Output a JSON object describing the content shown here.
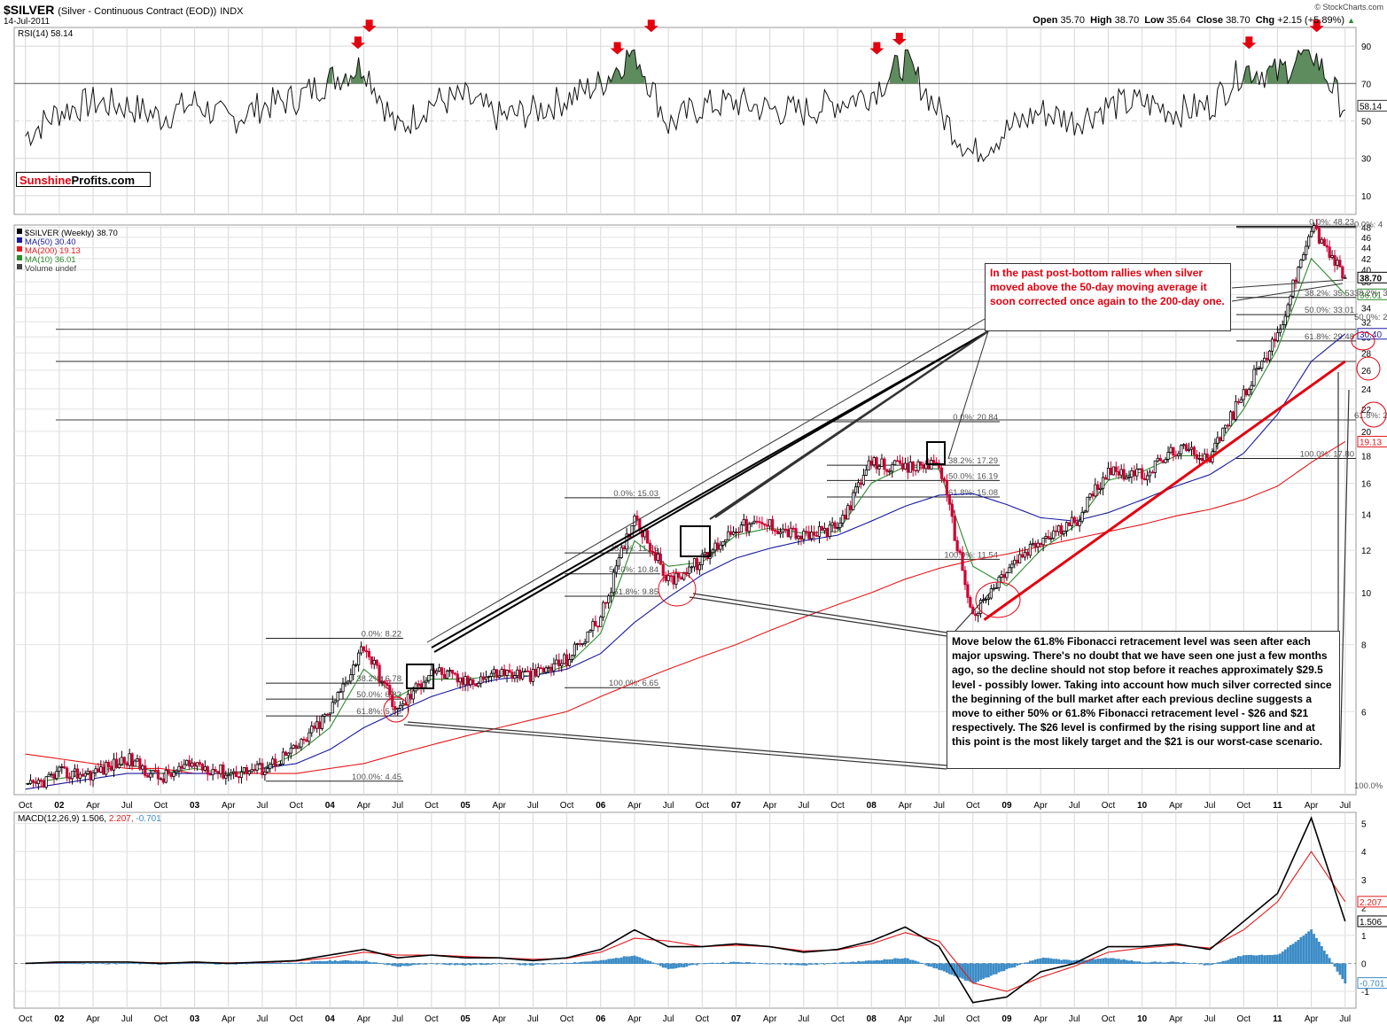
{
  "header": {
    "symbol": "$SILVER",
    "name": "(Silver - Continuous Contract (EOD))",
    "exchange": "INDX",
    "date": "14-Jul-2011",
    "credit": "© StockCharts.com",
    "open_label": "Open",
    "open": "35.70",
    "high_label": "High",
    "high": "38.70",
    "low_label": "Low",
    "low": "35.64",
    "close_label": "Close",
    "close": "38.70",
    "chg_label": "Chg",
    "chg": "+2.15 (+5.89%)",
    "chg_arrow": "▲"
  },
  "logo": {
    "part1": "Sunshine",
    "part2": "Profits.com"
  },
  "colors": {
    "price_up": "#000000",
    "price_down": "#cc0033",
    "ma50": "#1a1aa0",
    "ma200": "#e31a1c",
    "ma10": "#2d8a2d",
    "rsi_fill": "#5e8c5e",
    "macd_signal": "#e31a1c",
    "histogram": "#3b8bc6",
    "annotation": "#e3000f",
    "support_line": "#e3000f"
  },
  "annotations": {
    "note1": "In the past post-bottom rallies when silver moved above the 50-day moving average it soon corrected once again to the 200-day one.",
    "note2": "Move below the 61.8% Fibonacci retracement level was seen after each major upswing. There's no doubt that we have seen one just a few months ago, so the decline should not stop before it reaches approximately $29.5 level - possibly lower. Taking into account how much silver corrected since the beginning of the bull market after each previous decline suggests a move to either 50% or 61.8% Fibonacci retracement level - $26 and $21 respectively. The $26 level is confirmed by the rising support line and at this point is the most likely target and the $21 is our worst-case scenario."
  },
  "chart_data": [
    {
      "type": "line",
      "panel": "RSI",
      "legend": "RSI(14) 58.14",
      "ytick_labels": [
        "90",
        "70",
        "50",
        "30",
        "10"
      ],
      "yticks": [
        90,
        70,
        50,
        30,
        10
      ],
      "ylim": [
        0,
        100
      ],
      "current_value": "58.14",
      "x": [
        "2001-10",
        "2002-01",
        "2002-04",
        "2002-07",
        "2002-10",
        "2003-01",
        "2003-04",
        "2003-07",
        "2003-10",
        "2004-01",
        "2004-04",
        "2004-07",
        "2004-10",
        "2005-01",
        "2005-04",
        "2005-07",
        "2005-10",
        "2006-01",
        "2006-04",
        "2006-07",
        "2006-10",
        "2007-01",
        "2007-04",
        "2007-07",
        "2007-10",
        "2008-01",
        "2008-04",
        "2008-07",
        "2008-10",
        "2009-01",
        "2009-04",
        "2009-07",
        "2009-10",
        "2010-01",
        "2010-04",
        "2010-07",
        "2010-10",
        "2011-01",
        "2011-04",
        "2011-07"
      ],
      "values": [
        42,
        55,
        60,
        58,
        52,
        60,
        50,
        58,
        62,
        72,
        80,
        45,
        60,
        62,
        52,
        55,
        62,
        70,
        88,
        48,
        58,
        60,
        56,
        55,
        60,
        65,
        82,
        55,
        32,
        45,
        55,
        50,
        58,
        60,
        55,
        58,
        78,
        75,
        88,
        56
      ],
      "overbought_peaks": [
        {
          "x": "2004-03",
          "value": 80
        },
        {
          "x": "2004-04",
          "value": 89
        },
        {
          "x": "2006-02",
          "value": 77
        },
        {
          "x": "2006-05",
          "value": 89
        },
        {
          "x": "2008-01",
          "value": 77
        },
        {
          "x": "2008-03",
          "value": 82
        },
        {
          "x": "2010-10",
          "value": 80
        },
        {
          "x": "2011-04",
          "value": 89
        }
      ]
    },
    {
      "type": "line",
      "panel": "Price (log scale)",
      "legend": [
        "$SILVER (Weekly) 38.70",
        "MA(50) 30.40",
        "MA(200) 19.13",
        "MA(10) 36.01",
        "Volume undef"
      ],
      "scale": "log",
      "ytick_labels": [
        "48",
        "46",
        "44",
        "42",
        "40",
        "38",
        "36",
        "34",
        "32",
        "30",
        "28",
        "26",
        "24",
        "22",
        "20",
        "18",
        "16",
        "14",
        "12",
        "10",
        "8",
        "6"
      ],
      "yticks": [
        48,
        46,
        44,
        42,
        40,
        38,
        36,
        34,
        32,
        30,
        28,
        26,
        24,
        22,
        20,
        18,
        16,
        14,
        12,
        10,
        8,
        6
      ],
      "ylim": [
        4.2,
        48.5
      ],
      "right_labels": [
        "38.70",
        "36.01",
        "30.40",
        "19.13"
      ],
      "x": [
        "2001-10",
        "2002-01",
        "2002-04",
        "2002-07",
        "2002-10",
        "2003-01",
        "2003-04",
        "2003-07",
        "2003-10",
        "2004-01",
        "2004-04",
        "2004-07",
        "2004-10",
        "2005-01",
        "2005-04",
        "2005-07",
        "2005-10",
        "2006-01",
        "2006-04",
        "2006-07",
        "2006-10",
        "2007-01",
        "2007-04",
        "2007-07",
        "2007-10",
        "2008-01",
        "2008-04",
        "2008-07",
        "2008-10",
        "2009-01",
        "2009-04",
        "2009-07",
        "2009-10",
        "2010-01",
        "2010-04",
        "2010-07",
        "2010-10",
        "2011-01",
        "2011-04",
        "2011-07"
      ],
      "series": [
        {
          "name": "$SILVER (Weekly) 38.70",
          "values": [
            4.3,
            4.6,
            4.6,
            4.9,
            4.5,
            4.8,
            4.6,
            4.7,
            5.1,
            6.0,
            8.0,
            6.0,
            7.2,
            6.8,
            7.1,
            7.0,
            7.5,
            9.0,
            14.0,
            10.5,
            11.5,
            13.3,
            13.4,
            12.7,
            13.2,
            17.5,
            17.0,
            17.5,
            9.0,
            11.0,
            12.5,
            13.5,
            17.0,
            16.5,
            18.5,
            18.0,
            23.5,
            30.0,
            48.0,
            38.7
          ]
        },
        {
          "name": "MA(50) 30.40",
          "values": [
            4.3,
            4.4,
            4.5,
            4.6,
            4.6,
            4.6,
            4.6,
            4.7,
            4.8,
            5.1,
            5.6,
            6.0,
            6.4,
            6.7,
            6.9,
            7.0,
            7.2,
            7.7,
            8.8,
            9.8,
            10.8,
            11.6,
            12.1,
            12.5,
            12.8,
            13.6,
            14.5,
            15.2,
            15.3,
            14.6,
            13.8,
            13.6,
            14.1,
            14.9,
            15.8,
            16.6,
            18.2,
            21.5,
            27.0,
            30.4
          ]
        },
        {
          "name": "MA(200) 19.13",
          "values": [
            5.0,
            4.9,
            4.8,
            4.7,
            4.7,
            4.6,
            4.6,
            4.6,
            4.6,
            4.7,
            4.8,
            5.0,
            5.2,
            5.4,
            5.6,
            5.8,
            6.0,
            6.4,
            6.8,
            7.2,
            7.6,
            8.0,
            8.5,
            9.0,
            9.5,
            10.0,
            10.6,
            11.1,
            11.5,
            11.8,
            12.2,
            12.6,
            13.0,
            13.4,
            13.9,
            14.3,
            14.9,
            15.8,
            17.5,
            19.13
          ]
        },
        {
          "name": "MA(10) 36.01",
          "values": [
            4.4,
            4.5,
            4.6,
            4.8,
            4.6,
            4.7,
            4.6,
            4.7,
            5.0,
            5.6,
            7.2,
            6.4,
            6.9,
            6.9,
            7.0,
            7.0,
            7.3,
            8.4,
            12.5,
            11.2,
            11.4,
            12.8,
            13.2,
            12.9,
            13.0,
            16.0,
            17.2,
            17.0,
            11.2,
            10.3,
            12.0,
            13.3,
            16.2,
            16.8,
            18.0,
            18.0,
            22.0,
            28.5,
            42.0,
            36.01
          ]
        }
      ],
      "fibonacci_sets": [
        {
          "levels": [
            "0.0%: 8.22",
            "38.2%: 6.78",
            "50.0%: 6.33",
            "61.8%: 5.89",
            "100.0%: 4.45"
          ],
          "values": [
            8.22,
            6.78,
            6.33,
            5.89,
            4.45
          ]
        },
        {
          "levels": [
            "0.0%: 15.03",
            "38.2%: 11.86",
            "50.0%: 10.84",
            "61.8%: 9.85",
            "100.0%: 6.65"
          ],
          "values": [
            15.03,
            11.86,
            10.84,
            9.85,
            6.65
          ]
        },
        {
          "levels": [
            "0.0%: 20.84",
            "38.2%: 17.29",
            "50.0%: 16.19",
            "61.8%: 15.08",
            "100.0%: 11.54"
          ],
          "values": [
            20.84,
            17.29,
            16.19,
            15.08,
            11.54
          ]
        },
        {
          "levels": [
            "0.0%: 48.23",
            "38.2%: 35.53",
            "50.0%: 33.01",
            "61.8%: 29.48",
            "100.0%: 17.80"
          ],
          "values": [
            48.23,
            35.53,
            33.01,
            29.48,
            17.8
          ]
        }
      ],
      "horizontal_levels": [
        31.0,
        27.0,
        21.0
      ],
      "right_fib_labels": [
        "0.0%: 4",
        "38.2%: 3",
        "50.0%: 2",
        "61.8%: 2",
        "100.0%"
      ],
      "support_line": {
        "from": {
          "x": "2008-11",
          "y": 8.9
        },
        "to": {
          "x": "2011-07",
          "y": 27.0
        }
      }
    },
    {
      "type": "line",
      "panel": "MACD",
      "legend": [
        "MACD(12,26,9) 1.506,",
        "2.207,",
        "-0.701"
      ],
      "ytick_labels": [
        "5",
        "4",
        "3",
        "2",
        "1",
        "0",
        "-1"
      ],
      "yticks": [
        5,
        4,
        3,
        2,
        1,
        0,
        -1
      ],
      "ylim": [
        -1.6,
        5.4
      ],
      "right_labels": [
        "2.207",
        "1.506",
        "-0.701"
      ],
      "x": [
        "2001-10",
        "2002-01",
        "2002-04",
        "2002-07",
        "2002-10",
        "2003-01",
        "2003-04",
        "2003-07",
        "2003-10",
        "2004-01",
        "2004-04",
        "2004-07",
        "2004-10",
        "2005-01",
        "2005-04",
        "2005-07",
        "2005-10",
        "2006-01",
        "2006-04",
        "2006-07",
        "2006-10",
        "2007-01",
        "2007-04",
        "2007-07",
        "2007-10",
        "2008-01",
        "2008-04",
        "2008-07",
        "2008-10",
        "2009-01",
        "2009-04",
        "2009-07",
        "2009-10",
        "2010-01",
        "2010-04",
        "2010-07",
        "2010-10",
        "2011-01",
        "2011-04",
        "2011-07"
      ],
      "series": [
        {
          "name": "MACD",
          "values": [
            0.0,
            0.05,
            0.05,
            0.05,
            0.0,
            0.05,
            0.0,
            0.05,
            0.1,
            0.3,
            0.5,
            0.2,
            0.3,
            0.2,
            0.2,
            0.1,
            0.2,
            0.5,
            1.2,
            0.6,
            0.6,
            0.7,
            0.6,
            0.4,
            0.5,
            0.8,
            1.3,
            0.6,
            -1.4,
            -1.2,
            -0.3,
            0.0,
            0.6,
            0.6,
            0.7,
            0.5,
            1.5,
            2.5,
            5.2,
            1.506
          ]
        },
        {
          "name": "Signal",
          "values": [
            0.0,
            0.03,
            0.05,
            0.05,
            0.02,
            0.03,
            0.02,
            0.03,
            0.08,
            0.2,
            0.4,
            0.3,
            0.3,
            0.25,
            0.2,
            0.15,
            0.18,
            0.4,
            0.9,
            0.8,
            0.6,
            0.65,
            0.6,
            0.45,
            0.48,
            0.7,
            1.1,
            0.8,
            -0.7,
            -1.0,
            -0.5,
            -0.1,
            0.4,
            0.55,
            0.65,
            0.55,
            1.2,
            2.2,
            4.0,
            2.207
          ]
        },
        {
          "name": "Histogram",
          "values": [
            0.0,
            0.02,
            0.0,
            0.0,
            -0.02,
            0.02,
            -0.02,
            0.02,
            0.02,
            0.1,
            0.1,
            -0.1,
            0.0,
            -0.05,
            0.0,
            -0.05,
            0.02,
            0.1,
            0.3,
            -0.2,
            0.0,
            0.05,
            0.0,
            -0.05,
            0.02,
            0.1,
            0.2,
            -0.2,
            -0.7,
            -0.2,
            0.2,
            0.1,
            0.2,
            0.05,
            0.05,
            -0.05,
            0.3,
            0.3,
            1.2,
            -0.701
          ]
        }
      ]
    }
  ],
  "x_axis": {
    "labels": [
      "Oct",
      "02",
      "Apr",
      "Jul",
      "Oct",
      "03",
      "Apr",
      "Jul",
      "Oct",
      "04",
      "Apr",
      "Jul",
      "Oct",
      "05",
      "Apr",
      "Jul",
      "Oct",
      "06",
      "Apr",
      "Jul",
      "Oct",
      "07",
      "Apr",
      "Jul",
      "Oct",
      "08",
      "Apr",
      "Jul",
      "Oct",
      "09",
      "Apr",
      "Jul",
      "Oct",
      "10",
      "Apr",
      "Jul",
      "Oct",
      "11",
      "Apr",
      "Jul"
    ],
    "bold_year_labels": [
      "02",
      "03",
      "04",
      "05",
      "06",
      "07",
      "08",
      "09",
      "10",
      "11"
    ]
  }
}
